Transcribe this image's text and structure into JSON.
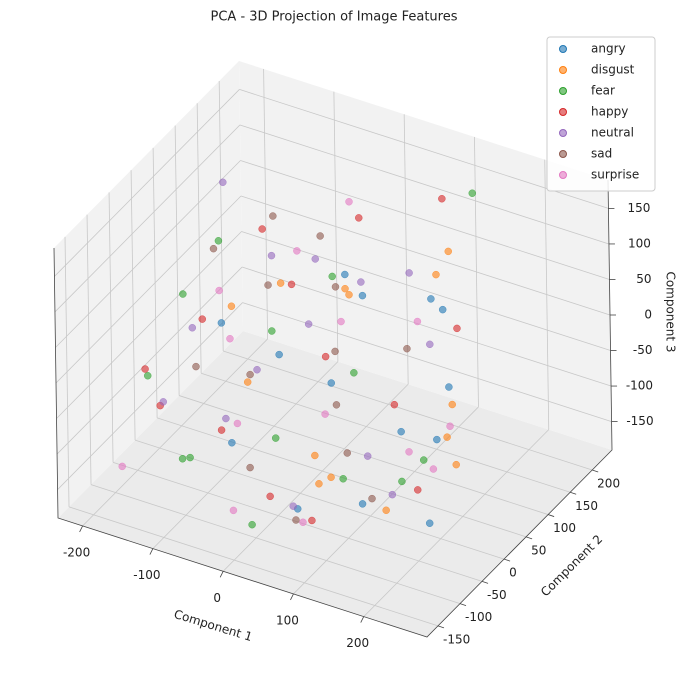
{
  "chart_data": {
    "type": "scatter3d",
    "title": "PCA - 3D Projection of Image Features",
    "xlabel": "Component 1",
    "ylabel": "Component 2",
    "zlabel": "Component 3",
    "xlim": [
      -235,
      290
    ],
    "ylim": [
      -175,
      245
    ],
    "zlim": [
      -190,
      190
    ],
    "xticks": [
      -200,
      -100,
      0,
      100,
      200
    ],
    "yticks": [
      -150,
      -100,
      -50,
      0,
      50,
      100,
      150,
      200
    ],
    "zticks": [
      -150,
      -100,
      -50,
      0,
      50,
      100,
      150
    ],
    "grid": true,
    "legend": "upper right",
    "series": [
      {
        "name": "angry",
        "color": "#1f77b4",
        "x": [
          120,
          85,
          150,
          -40,
          60,
          190,
          10,
          -90,
          140,
          30,
          210,
          95,
          -20,
          170
        ],
        "y": [
          40,
          -60,
          90,
          20,
          -100,
          10,
          130,
          -30,
          -80,
          60,
          -40,
          150,
          -120,
          70
        ],
        "z": [
          -90,
          30,
          60,
          -20,
          -130,
          -60,
          10,
          40,
          -110,
          90,
          -140,
          20,
          -50,
          -30
        ]
      },
      {
        "name": "disgust",
        "color": "#ff7f0e",
        "x": [
          140,
          -60,
          30,
          180,
          90,
          -120,
          60,
          200,
          10,
          110,
          -30,
          160,
          70,
          230
        ],
        "y": [
          120,
          -20,
          60,
          -90,
          170,
          40,
          -60,
          30,
          100,
          -130,
          10,
          80,
          -40,
          -10
        ],
        "z": [
          120,
          -40,
          70,
          -100,
          40,
          10,
          -80,
          -20,
          30,
          -60,
          90,
          -110,
          -120,
          -70
        ]
      },
      {
        "name": "fear",
        "color": "#2ca02c",
        "x": [
          -190,
          -150,
          -80,
          20,
          100,
          -20,
          60,
          150,
          -110,
          190,
          -50,
          30,
          120,
          -170
        ],
        "y": [
          -40,
          60,
          -120,
          -140,
          -60,
          110,
          30,
          160,
          -90,
          -20,
          20,
          -100,
          40,
          10
        ],
        "z": [
          -60,
          80,
          -90,
          -140,
          -100,
          40,
          -20,
          180,
          -120,
          -70,
          10,
          -40,
          -160,
          30
        ]
      },
      {
        "name": "happy",
        "color": "#d62728",
        "x": [
          -160,
          -100,
          40,
          130,
          -40,
          170,
          -200,
          80,
          0,
          -130,
          100,
          -60,
          200,
          20
        ],
        "y": [
          -60,
          80,
          -130,
          10,
          50,
          90,
          -30,
          -100,
          140,
          -10,
          170,
          -80,
          -50,
          30
        ],
        "z": [
          -80,
          100,
          -100,
          -30,
          60,
          40,
          -60,
          -140,
          110,
          20,
          150,
          -70,
          -90,
          -10
        ]
      },
      {
        "name": "neutral",
        "color": "#9467bd",
        "x": [
          -170,
          -60,
          40,
          110,
          -100,
          60,
          -10,
          150,
          -40,
          90,
          170,
          -130,
          20,
          -200
        ],
        "y": [
          30,
          -70,
          80,
          -20,
          100,
          -110,
          40,
          60,
          -30,
          110,
          -60,
          -100,
          10,
          150
        ],
        "z": [
          -30,
          -60,
          70,
          -90,
          50,
          -120,
          20,
          30,
          -10,
          80,
          -100,
          -40,
          140,
          90
        ]
      },
      {
        "name": "sad",
        "color": "#8c564b",
        "x": [
          -140,
          -80,
          -20,
          40,
          100,
          -110,
          10,
          70,
          -50,
          130,
          -170,
          -30,
          60,
          160
        ],
        "y": [
          -10,
          60,
          -80,
          20,
          -50,
          120,
          70,
          -120,
          -30,
          40,
          80,
          100,
          -10,
          -90
        ],
        "z": [
          -50,
          40,
          -110,
          10,
          -70,
          90,
          60,
          -130,
          -20,
          30,
          50,
          100,
          -40,
          -90
        ]
      },
      {
        "name": "surprise",
        "color": "#e377c2",
        "x": [
          -190,
          -110,
          -50,
          30,
          80,
          150,
          210,
          -70,
          0,
          120,
          -150,
          50,
          190,
          -20
        ],
        "y": [
          -100,
          20,
          -60,
          50,
          -120,
          10,
          -30,
          110,
          -150,
          80,
          60,
          -20,
          40,
          150
        ],
        "z": [
          -150,
          -20,
          -70,
          30,
          -130,
          -90,
          -70,
          60,
          -120,
          40,
          10,
          -50,
          -60,
          120
        ]
      }
    ]
  }
}
